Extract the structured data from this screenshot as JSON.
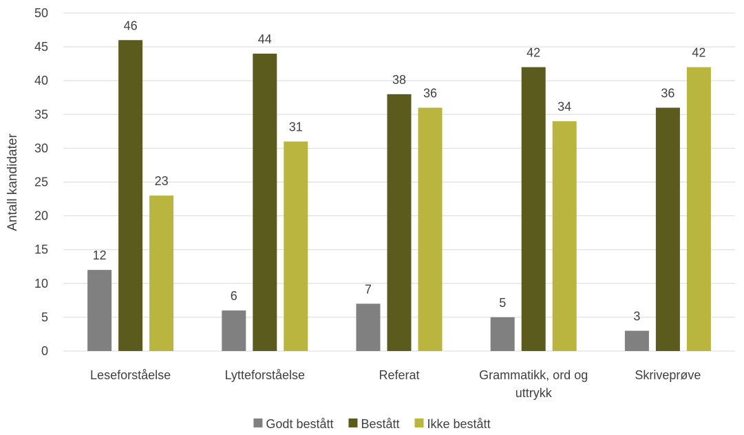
{
  "chart_data": {
    "type": "bar",
    "title": "",
    "xlabel": "",
    "ylabel": "Antall kandidater",
    "ylim": [
      0,
      50
    ],
    "ytick_step": 5,
    "grid": true,
    "legend_position": "bottom",
    "categories": [
      [
        "Leseforståelse"
      ],
      [
        "Lytteforståelse"
      ],
      [
        "Referat"
      ],
      [
        "Grammatikk, ord og",
        "uttrykk"
      ],
      [
        "Skriveprøve"
      ]
    ],
    "series": [
      {
        "name": "Godt bestått",
        "color": "#808080",
        "values": [
          12,
          6,
          7,
          5,
          3
        ]
      },
      {
        "name": "Bestått",
        "color": "#5b5b1e",
        "values": [
          46,
          44,
          38,
          42,
          36
        ]
      },
      {
        "name": "Ikke bestått",
        "color": "#b9b53e",
        "values": [
          23,
          31,
          36,
          34,
          42
        ]
      }
    ]
  }
}
